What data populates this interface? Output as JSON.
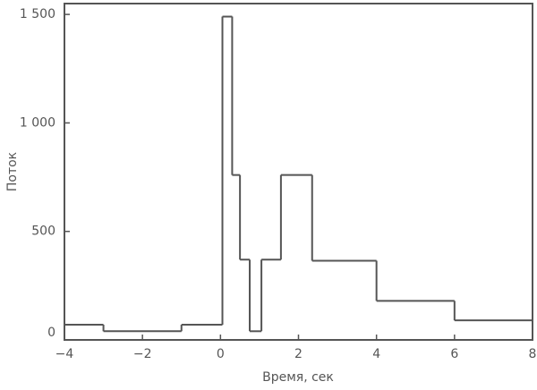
{
  "chart_data": {
    "type": "histogram",
    "x_label": "Время, сек",
    "y_label": "Поток",
    "bins": [
      -4,
      -3,
      -1,
      0.05,
      0.3,
      0.5,
      0.75,
      1.05,
      1.55,
      2.35,
      4,
      6,
      8
    ],
    "values": [
      70,
      40,
      70,
      1490,
      760,
      370,
      40,
      370,
      760,
      365,
      180,
      90
    ],
    "color": "#555555",
    "xlim": [
      -4,
      8
    ],
    "xticks": [
      {
        "value": -4,
        "label": "−4"
      },
      {
        "value": -2,
        "label": "−2"
      },
      0,
      2,
      4,
      6,
      8
    ],
    "ylim": [
      0,
      1550
    ],
    "yticks": [
      0,
      500,
      {
        "value": 1000,
        "label": "1 000"
      },
      {
        "value": 1500,
        "label": "1 500"
      }
    ]
  }
}
